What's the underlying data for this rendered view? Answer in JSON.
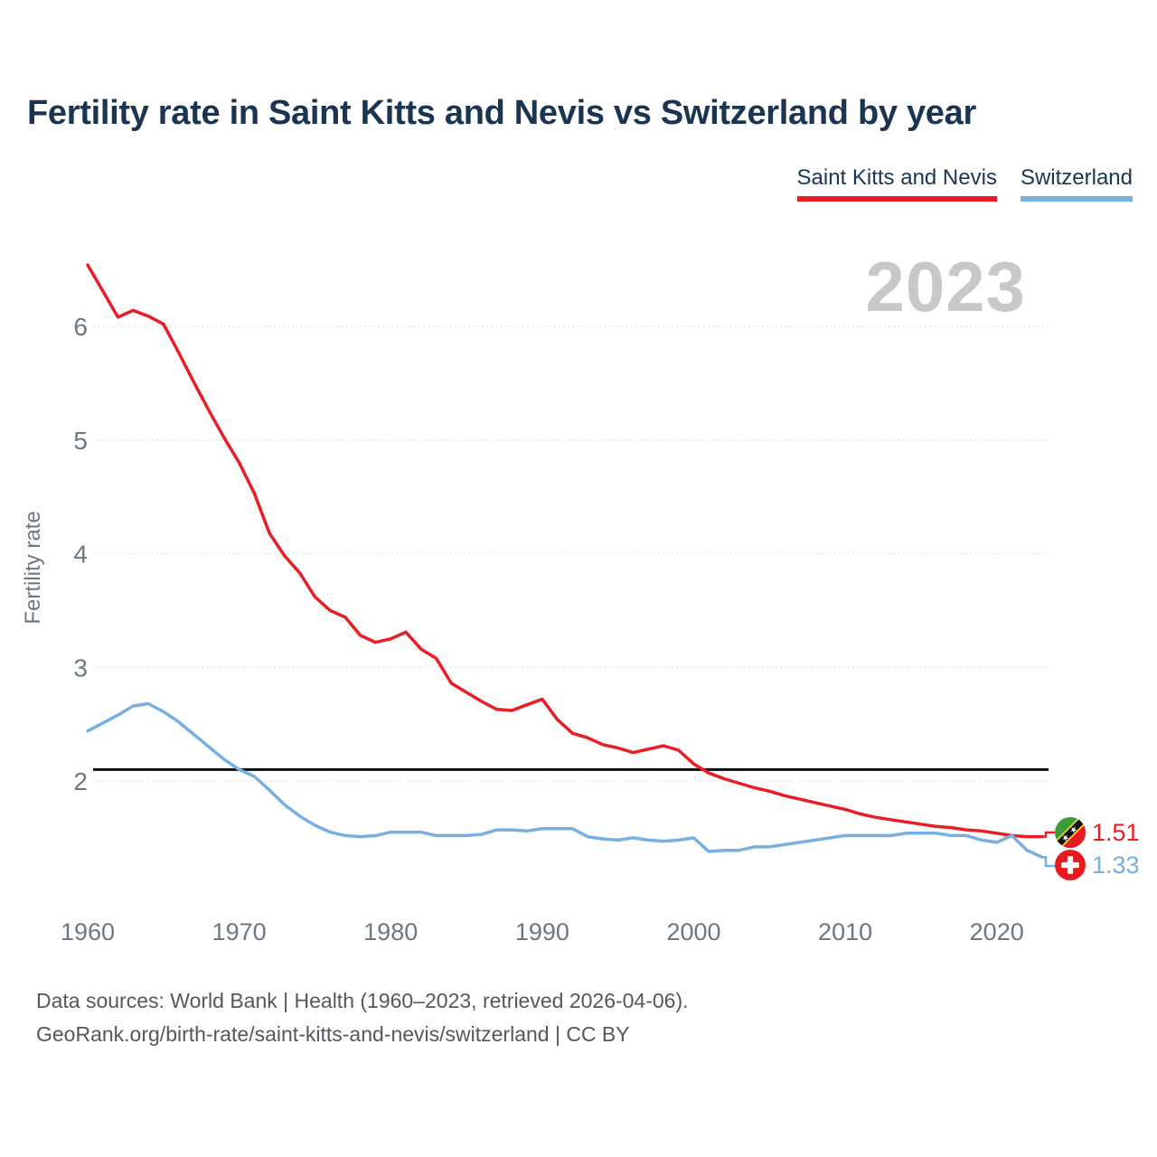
{
  "title": "Fertility rate in Saint Kitts and Nevis vs Switzerland by year",
  "watermark": "2023",
  "legend": [
    {
      "label": "Saint Kitts and Nevis",
      "color": "#e81e25"
    },
    {
      "label": "Switzerland",
      "color": "#76b0e2"
    }
  ],
  "end_labels": [
    {
      "value": "1.51",
      "color": "#e81e25",
      "flag": "saint-kitts-and-nevis-flag"
    },
    {
      "value": "1.33",
      "color": "#76b0e2",
      "flag": "switzerland-flag"
    }
  ],
  "footer": {
    "line1": "Data sources: World Bank | Health (1960–2023, retrieved 2026-04-06).",
    "line2": "GeoRank.org/birth-rate/saint-kitts-and-nevis/switzerland | CC BY"
  },
  "chart_data": {
    "type": "line",
    "title": "Fertility rate in Saint Kitts and Nevis vs Switzerland by year",
    "xlabel": "",
    "ylabel": "Fertility rate",
    "x_ticks": [
      1960,
      1970,
      1980,
      1990,
      2000,
      2010,
      2020
    ],
    "y_ticks": [
      2,
      3,
      4,
      5,
      6
    ],
    "xlim": [
      1960,
      2023
    ],
    "ylim": [
      1.2,
      6.6
    ],
    "grid": "horizontal",
    "legend_position": "top-right",
    "reference_line": {
      "value": 2.1,
      "color": "#0b0d11"
    },
    "years": [
      1960,
      1961,
      1962,
      1963,
      1964,
      1965,
      1966,
      1967,
      1968,
      1969,
      1970,
      1971,
      1972,
      1973,
      1974,
      1975,
      1976,
      1977,
      1978,
      1979,
      1980,
      1981,
      1982,
      1983,
      1984,
      1985,
      1986,
      1987,
      1988,
      1989,
      1990,
      1991,
      1992,
      1993,
      1994,
      1995,
      1996,
      1997,
      1998,
      1999,
      2000,
      2001,
      2002,
      2003,
      2004,
      2005,
      2006,
      2007,
      2008,
      2009,
      2010,
      2011,
      2012,
      2013,
      2014,
      2015,
      2016,
      2017,
      2018,
      2019,
      2020,
      2021,
      2022,
      2023
    ],
    "series": [
      {
        "name": "Saint Kitts and Nevis",
        "color": "#e81e25",
        "final_value": 1.51,
        "values": [
          6.54,
          6.31,
          6.08,
          6.14,
          6.09,
          6.02,
          5.77,
          5.51,
          5.26,
          5.02,
          4.8,
          4.53,
          4.18,
          3.98,
          3.83,
          3.62,
          3.5,
          3.44,
          3.28,
          3.22,
          3.25,
          3.31,
          3.16,
          3.08,
          2.86,
          2.78,
          2.7,
          2.63,
          2.62,
          2.67,
          2.72,
          2.54,
          2.42,
          2.38,
          2.32,
          2.29,
          2.25,
          2.28,
          2.31,
          2.27,
          2.15,
          2.07,
          2.02,
          1.98,
          1.94,
          1.91,
          1.87,
          1.84,
          1.81,
          1.78,
          1.75,
          1.71,
          1.68,
          1.66,
          1.64,
          1.62,
          1.6,
          1.59,
          1.57,
          1.56,
          1.54,
          1.52,
          1.51,
          1.51
        ]
      },
      {
        "name": "Switzerland",
        "color": "#76b0e2",
        "final_value": 1.33,
        "values": [
          2.44,
          2.51,
          2.58,
          2.66,
          2.68,
          2.61,
          2.52,
          2.41,
          2.3,
          2.19,
          2.1,
          2.04,
          1.92,
          1.79,
          1.69,
          1.61,
          1.55,
          1.52,
          1.51,
          1.52,
          1.55,
          1.55,
          1.55,
          1.52,
          1.52,
          1.52,
          1.53,
          1.57,
          1.57,
          1.56,
          1.58,
          1.58,
          1.58,
          1.51,
          1.49,
          1.48,
          1.5,
          1.48,
          1.47,
          1.48,
          1.5,
          1.38,
          1.39,
          1.39,
          1.42,
          1.42,
          1.44,
          1.46,
          1.48,
          1.5,
          1.52,
          1.52,
          1.52,
          1.52,
          1.54,
          1.54,
          1.54,
          1.52,
          1.52,
          1.48,
          1.46,
          1.52,
          1.39,
          1.33
        ]
      }
    ]
  }
}
